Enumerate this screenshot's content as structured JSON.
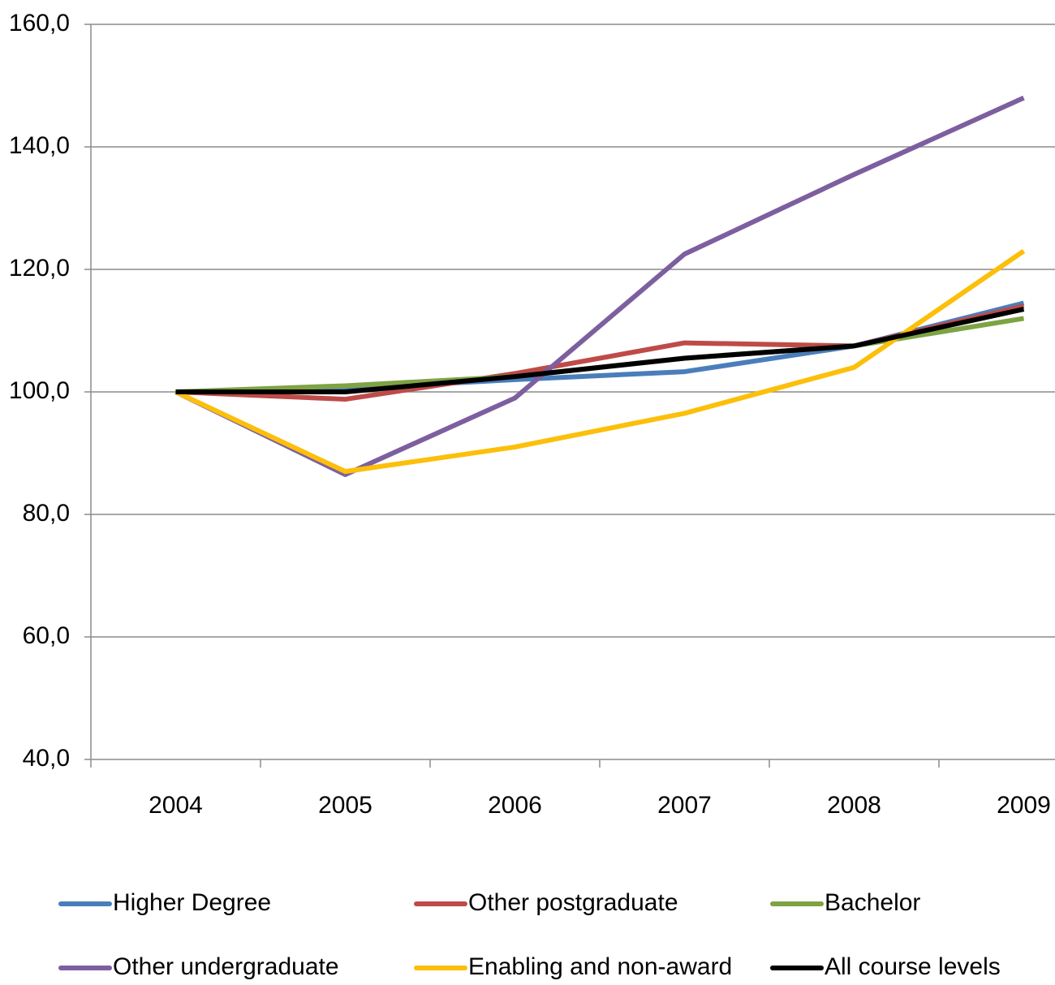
{
  "chart_data": {
    "type": "line",
    "categories": [
      "2004",
      "2005",
      "2006",
      "2007",
      "2008",
      "2009"
    ],
    "series": [
      {
        "name": "Higher Degree",
        "color": "#4a7ebb",
        "values": [
          100,
          100.5,
          102,
          103.3,
          107.5,
          114.5
        ]
      },
      {
        "name": "Other postgraduate",
        "color": "#be4b48",
        "values": [
          100,
          98.8,
          103,
          108,
          107.5,
          114
        ]
      },
      {
        "name": "Bachelor",
        "color": "#7ea343",
        "values": [
          100,
          101,
          102.5,
          105.5,
          107.5,
          112
        ]
      },
      {
        "name": "Other undergraduate",
        "color": "#7d5fa0",
        "values": [
          100,
          86.5,
          99,
          122.5,
          135.5,
          148
        ]
      },
      {
        "name": "Enabling and non-award",
        "color": "#fcbf0a",
        "values": [
          100,
          87,
          91,
          96.5,
          104,
          123
        ]
      },
      {
        "name": "All course levels",
        "color": "#000000",
        "values": [
          100,
          100,
          102.5,
          105.5,
          107.5,
          113.5
        ]
      }
    ],
    "ylim": [
      40,
      160
    ],
    "yticks": [
      {
        "value": 40,
        "label": "40,0"
      },
      {
        "value": 60,
        "label": "60,0"
      },
      {
        "value": 80,
        "label": "80,0"
      },
      {
        "value": 100,
        "label": "100,0"
      },
      {
        "value": 120,
        "label": "120,0"
      },
      {
        "value": 140,
        "label": "140,0"
      },
      {
        "value": 160,
        "label": "160,0"
      }
    ],
    "grid": true,
    "legend": "bottom"
  }
}
